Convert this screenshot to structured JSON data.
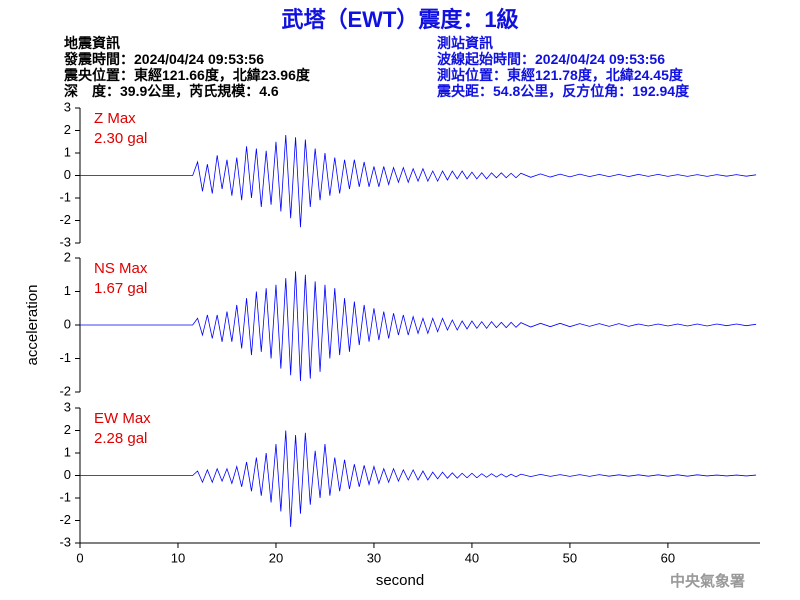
{
  "header": {
    "title": "武塔（EWT）震度：1級",
    "left": [
      "地震資訊",
      "發震時間：2024/04/24 09:53:56",
      "震央位置：東經121.66度，北緯23.96度",
      "深　度：39.9公里，芮氏規模：4.6"
    ],
    "right": [
      "測站資訊",
      "波線起始時間：2024/04/24 09:53:56",
      "測站位置：東經121.78度，北緯24.45度",
      "震央距：54.8公里，反方位角：192.94度"
    ]
  },
  "footer": "中央氣象署",
  "chart_data": [
    {
      "type": "line",
      "annotations": [
        "Z Max",
        "2.30 gal"
      ],
      "color": "#0000ff",
      "x": [
        0,
        11.5,
        12,
        12.5,
        13,
        13.5,
        14,
        14.5,
        15,
        15.5,
        16,
        16.5,
        17,
        17.5,
        18,
        18.5,
        19,
        19.5,
        20,
        20.5,
        21,
        21.5,
        22,
        22.5,
        23,
        23.5,
        24,
        24.5,
        25,
        25.5,
        26,
        26.5,
        27,
        27.5,
        28,
        28.5,
        29,
        29.5,
        30,
        30.5,
        31,
        31.5,
        32,
        32.5,
        33,
        33.5,
        34,
        34.5,
        35,
        35.5,
        36,
        36.5,
        37,
        37.5,
        38,
        38.5,
        39,
        39.5,
        40,
        40.5,
        41,
        41.5,
        42,
        42.5,
        43,
        43.5,
        44,
        44.5,
        45,
        46,
        47,
        48,
        49,
        50,
        51,
        52,
        53,
        54,
        55,
        56,
        57,
        58,
        59,
        60,
        61,
        62,
        63,
        64,
        65,
        66,
        67,
        68,
        69
      ],
      "values": [
        0,
        0,
        0.6,
        -0.7,
        0.5,
        -0.8,
        0.9,
        -0.6,
        0.7,
        -0.9,
        0.8,
        -1.1,
        1.3,
        -1.0,
        1.2,
        -1.4,
        1.1,
        -1.3,
        1.5,
        -1.6,
        1.8,
        -1.9,
        1.7,
        -2.3,
        1.6,
        -1.4,
        1.2,
        -1.1,
        1.0,
        -0.9,
        0.8,
        -0.8,
        0.7,
        -0.6,
        0.7,
        -0.5,
        0.6,
        -0.5,
        0.4,
        -0.5,
        0.4,
        -0.4,
        0.35,
        -0.3,
        0.35,
        -0.3,
        0.3,
        -0.25,
        0.3,
        -0.25,
        0.2,
        -0.25,
        0.2,
        -0.2,
        0.2,
        -0.15,
        0.2,
        -0.15,
        0.15,
        -0.15,
        0.12,
        -0.15,
        0.12,
        -0.1,
        0.12,
        -0.1,
        0.1,
        -0.1,
        0.1,
        -0.08,
        0.07,
        -0.07,
        0.06,
        -0.06,
        0.06,
        -0.05,
        0.05,
        -0.05,
        0.05,
        -0.05,
        0.05,
        -0.04,
        0.05,
        -0.04,
        0.04,
        -0.04,
        0.04,
        -0.04,
        0.04,
        -0.03,
        0.04,
        -0.03,
        0.03
      ],
      "xlim": [
        0,
        69.4
      ],
      "ylim": [
        -3,
        3
      ],
      "yticks": [
        -3,
        -2,
        -1,
        0,
        1,
        2,
        3
      ]
    },
    {
      "type": "line",
      "annotations": [
        "NS Max",
        "1.67 gal"
      ],
      "color": "#0000ff",
      "ylabel": "acceleration",
      "x": [
        0,
        11.5,
        12,
        12.5,
        13,
        13.5,
        14,
        14.5,
        15,
        15.5,
        16,
        16.5,
        17,
        17.5,
        18,
        18.5,
        19,
        19.5,
        20,
        20.5,
        21,
        21.5,
        22,
        22.5,
        23,
        23.5,
        24,
        24.5,
        25,
        25.5,
        26,
        26.5,
        27,
        27.5,
        28,
        28.5,
        29,
        29.5,
        30,
        30.5,
        31,
        31.5,
        32,
        32.5,
        33,
        33.5,
        34,
        34.5,
        35,
        35.5,
        36,
        36.5,
        37,
        37.5,
        38,
        38.5,
        39,
        39.5,
        40,
        40.5,
        41,
        41.5,
        42,
        42.5,
        43,
        43.5,
        44,
        44.5,
        45,
        46,
        47,
        48,
        49,
        50,
        51,
        52,
        53,
        54,
        55,
        56,
        57,
        58,
        59,
        60,
        61,
        62,
        63,
        64,
        65,
        66,
        67,
        68,
        69
      ],
      "values": [
        0,
        0,
        0.2,
        -0.3,
        0.3,
        -0.4,
        0.3,
        -0.5,
        0.4,
        -0.5,
        0.6,
        -0.7,
        0.8,
        -0.9,
        1.0,
        -0.8,
        1.1,
        -1.0,
        1.2,
        -1.3,
        1.4,
        -1.5,
        1.6,
        -1.67,
        1.5,
        -1.6,
        1.3,
        -1.4,
        1.2,
        -1.0,
        1.1,
        -0.9,
        0.8,
        -0.8,
        0.7,
        -0.6,
        0.6,
        -0.5,
        0.5,
        -0.45,
        0.4,
        -0.4,
        0.35,
        -0.3,
        0.3,
        -0.3,
        0.25,
        -0.25,
        0.2,
        -0.25,
        0.2,
        -0.2,
        0.2,
        -0.15,
        0.15,
        -0.15,
        0.12,
        -0.12,
        0.12,
        -0.1,
        0.1,
        -0.1,
        0.1,
        -0.08,
        0.08,
        -0.08,
        0.08,
        -0.07,
        0.07,
        -0.06,
        0.05,
        -0.05,
        0.05,
        -0.05,
        0.04,
        -0.04,
        0.04,
        -0.04,
        0.04,
        -0.04,
        0.03,
        -0.03,
        0.03,
        -0.03,
        0.03,
        -0.03,
        0.03,
        -0.03,
        0.03,
        -0.02,
        0.03,
        -0.02,
        0.02
      ],
      "xlim": [
        0,
        69.4
      ],
      "ylim": [
        -2,
        2
      ],
      "yticks": [
        -2,
        -1,
        0,
        1,
        2
      ]
    },
    {
      "type": "line",
      "annotations": [
        "EW Max",
        "2.28 gal"
      ],
      "color": "#0000ff",
      "xlabel": "second",
      "x": [
        0,
        11.5,
        12,
        12.5,
        13,
        13.5,
        14,
        14.5,
        15,
        15.5,
        16,
        16.5,
        17,
        17.5,
        18,
        18.5,
        19,
        19.5,
        20,
        20.5,
        21,
        21.5,
        22,
        22.5,
        23,
        23.5,
        24,
        24.5,
        25,
        25.5,
        26,
        26.5,
        27,
        27.5,
        28,
        28.5,
        29,
        29.5,
        30,
        30.5,
        31,
        31.5,
        32,
        32.5,
        33,
        33.5,
        34,
        34.5,
        35,
        35.5,
        36,
        36.5,
        37,
        37.5,
        38,
        38.5,
        39,
        39.5,
        40,
        40.5,
        41,
        41.5,
        42,
        42.5,
        43,
        43.5,
        44,
        44.5,
        45,
        46,
        47,
        48,
        49,
        50,
        51,
        52,
        53,
        54,
        55,
        56,
        57,
        58,
        59,
        60,
        61,
        62,
        63,
        64,
        65,
        66,
        67,
        68,
        69
      ],
      "values": [
        0,
        0,
        0.2,
        -0.3,
        0.25,
        -0.3,
        0.3,
        -0.25,
        0.3,
        -0.35,
        0.4,
        -0.5,
        0.6,
        -0.7,
        0.8,
        -0.9,
        1.0,
        -1.2,
        1.4,
        -1.6,
        2.0,
        -2.28,
        1.8,
        -1.7,
        1.9,
        -1.3,
        1.1,
        -1.0,
        1.4,
        -0.9,
        0.8,
        -0.7,
        0.7,
        -0.6,
        0.5,
        -0.5,
        0.45,
        -0.4,
        0.4,
        -0.35,
        0.3,
        -0.3,
        0.3,
        -0.25,
        0.25,
        -0.2,
        0.25,
        -0.2,
        0.2,
        -0.2,
        0.15,
        -0.15,
        0.15,
        -0.12,
        0.12,
        -0.12,
        0.1,
        -0.1,
        0.1,
        -0.1,
        0.08,
        -0.08,
        0.08,
        -0.07,
        0.07,
        -0.07,
        0.06,
        -0.06,
        0.06,
        -0.05,
        0.05,
        -0.04,
        0.04,
        -0.04,
        0.04,
        -0.04,
        0.04,
        -0.03,
        0.03,
        -0.03,
        0.03,
        -0.03,
        0.03,
        -0.03,
        0.03,
        -0.03,
        0.03,
        -0.02,
        0.02,
        -0.02,
        0.02,
        -0.02,
        0.02
      ],
      "xlim": [
        0,
        69.4
      ],
      "ylim": [
        -3,
        3
      ],
      "yticks": [
        -3,
        -2,
        -1,
        0,
        1,
        2,
        3
      ],
      "xticks": [
        0,
        10,
        20,
        30,
        40,
        50,
        60
      ]
    }
  ]
}
